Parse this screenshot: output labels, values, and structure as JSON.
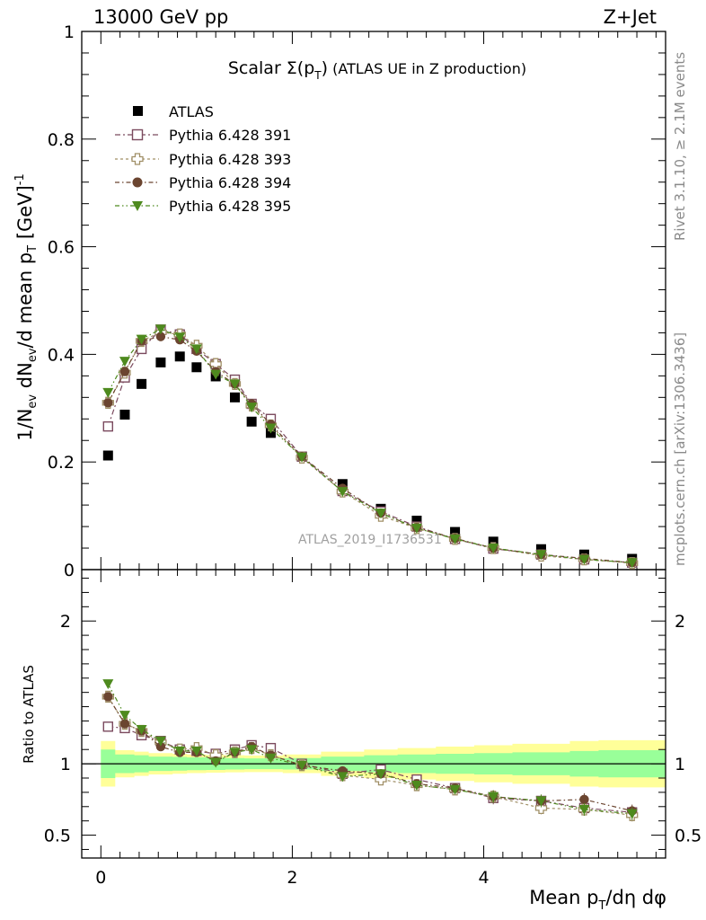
{
  "header": {
    "left": "13000 GeV pp",
    "right": "Z+Jet"
  },
  "side": {
    "rivet": "Rivet 3.1.10, ≥ 2.1M events",
    "mcplots": "mcplots.cern.ch [arXiv:1306.3436]"
  },
  "main": {
    "title_main": "Scalar Σ(p",
    "title_sub": "T",
    "title_close": ")",
    "title_rest": " (ATLAS UE in Z production)",
    "ylabel": "1/N_ev dN_ev/d mean p_T [GeV]^-1",
    "watermark": "ATLAS_2019_I1736531"
  },
  "ratio": {
    "ylabel": "Ratio to ATLAS"
  },
  "xaxis": {
    "label": "Mean p_T/dη dφ"
  },
  "legend": {
    "atlas": "ATLAS",
    "p391": "Pythia 6.428 391",
    "p393": "Pythia 6.428 393",
    "p394": "Pythia 6.428 394",
    "p395": "Pythia 6.428 395"
  },
  "chart_data": [
    {
      "type": "scatter",
      "xlim": [
        -0.2,
        5.9
      ],
      "ylim": [
        0,
        1.0
      ],
      "x_ticks": [
        0,
        2,
        4
      ],
      "y_ticks": [
        0,
        0.2,
        0.4,
        0.6,
        0.8,
        1
      ],
      "y_tick_labels": [
        "0",
        "0.2",
        "0.4",
        "0.6",
        "0.8",
        "1"
      ],
      "legend_position": "top-left",
      "x": [
        0.075,
        0.25,
        0.425,
        0.625,
        0.825,
        1.0,
        1.2,
        1.4,
        1.575,
        1.775,
        2.1,
        2.525,
        2.925,
        3.3,
        3.7,
        4.1,
        4.6,
        5.05,
        5.55
      ],
      "series": [
        {
          "name": "ATLAS",
          "color": "#000000",
          "marker": "square-filled",
          "values": [
            0.212,
            0.288,
            0.345,
            0.385,
            0.396,
            0.376,
            0.359,
            0.32,
            0.275,
            0.254,
            0.21,
            0.159,
            0.113,
            0.091,
            0.07,
            0.052,
            0.038,
            0.028,
            0.02
          ]
        },
        {
          "name": "Pythia 6.428 391",
          "color": "#7b4a5e",
          "marker": "square-open",
          "values": [
            0.266,
            0.357,
            0.41,
            0.446,
            0.437,
            0.41,
            0.382,
            0.353,
            0.308,
            0.28,
            0.21,
            0.146,
            0.108,
            0.08,
            0.057,
            0.039,
            0.028,
            0.019,
            0.013
          ]
        },
        {
          "name": "Pythia 6.428 393",
          "color": "#a08f66",
          "marker": "plus-open",
          "values": [
            0.31,
            0.366,
            0.425,
            0.441,
            0.437,
            0.416,
            0.382,
            0.345,
            0.305,
            0.268,
            0.208,
            0.145,
            0.1,
            0.077,
            0.057,
            0.04,
            0.026,
            0.019,
            0.012
          ]
        },
        {
          "name": "Pythia 6.428 394",
          "color": "#6b4530",
          "marker": "circle-filled",
          "values": [
            0.31,
            0.368,
            0.425,
            0.433,
            0.427,
            0.406,
            0.368,
            0.345,
            0.308,
            0.27,
            0.21,
            0.151,
            0.105,
            0.078,
            0.058,
            0.04,
            0.028,
            0.021,
            0.013
          ]
        },
        {
          "name": "Pythia 6.428 395",
          "color": "#4e8a1e",
          "marker": "triangle-down-filled",
          "values": [
            0.329,
            0.387,
            0.428,
            0.447,
            0.432,
            0.41,
            0.363,
            0.345,
            0.302,
            0.263,
            0.209,
            0.145,
            0.105,
            0.077,
            0.057,
            0.04,
            0.028,
            0.019,
            0.013
          ]
        }
      ]
    },
    {
      "type": "scatter",
      "xlim": [
        -0.2,
        5.9
      ],
      "ylim": [
        0.34,
        2.36
      ],
      "x_ticks": [
        0,
        2,
        4
      ],
      "y_ticks": [
        0.5,
        1,
        2
      ],
      "y_tick_labels": [
        "0.5",
        "1",
        "2"
      ],
      "x": [
        0.075,
        0.25,
        0.425,
        0.625,
        0.825,
        1.0,
        1.2,
        1.4,
        1.575,
        1.775,
        2.1,
        2.525,
        2.925,
        3.3,
        3.7,
        4.1,
        4.6,
        5.05,
        5.55
      ],
      "band_x": [
        0.0,
        0.15,
        0.35,
        0.5,
        0.75,
        0.9,
        1.1,
        1.3,
        1.5,
        1.65,
        1.9,
        2.3,
        2.75,
        3.1,
        3.5,
        3.9,
        4.3,
        4.9,
        5.2,
        5.9
      ],
      "band_inner": [
        0.1,
        0.065,
        0.06,
        0.05,
        0.048,
        0.045,
        0.043,
        0.04,
        0.038,
        0.038,
        0.04,
        0.05,
        0.06,
        0.065,
        0.07,
        0.075,
        0.08,
        0.09,
        0.095
      ],
      "band_outer": [
        0.16,
        0.095,
        0.085,
        0.075,
        0.07,
        0.065,
        0.062,
        0.06,
        0.058,
        0.058,
        0.065,
        0.085,
        0.1,
        0.11,
        0.12,
        0.13,
        0.14,
        0.16,
        0.165
      ],
      "series": [
        {
          "name": "Pythia 6.428 391",
          "color": "#7b4a5e",
          "marker": "square-open",
          "values": [
            1.26,
            1.25,
            1.2,
            1.16,
            1.1,
            1.09,
            1.07,
            1.1,
            1.13,
            1.11,
            1.0,
            0.93,
            0.96,
            0.89,
            0.83,
            0.76,
            0.74,
            0.69,
            0.66
          ]
        },
        {
          "name": "Pythia 6.428 393",
          "color": "#a08f66",
          "marker": "plus-open",
          "values": [
            1.47,
            1.28,
            1.23,
            1.15,
            1.1,
            1.11,
            1.06,
            1.08,
            1.11,
            1.06,
            0.99,
            0.92,
            0.89,
            0.85,
            0.82,
            0.77,
            0.69,
            0.68,
            0.64
          ]
        },
        {
          "name": "Pythia 6.428 394",
          "color": "#6b4530",
          "marker": "circle-filled",
          "values": [
            1.47,
            1.28,
            1.23,
            1.12,
            1.08,
            1.08,
            1.02,
            1.08,
            1.12,
            1.06,
            0.99,
            0.95,
            0.93,
            0.86,
            0.83,
            0.77,
            0.74,
            0.75,
            0.67
          ]
        },
        {
          "name": "Pythia 6.428 395",
          "color": "#4e8a1e",
          "marker": "triangle-down-filled",
          "values": [
            1.56,
            1.34,
            1.24,
            1.16,
            1.09,
            1.09,
            1.01,
            1.08,
            1.1,
            1.04,
            0.99,
            0.91,
            0.93,
            0.85,
            0.82,
            0.77,
            0.74,
            0.68,
            0.65
          ]
        }
      ]
    }
  ]
}
